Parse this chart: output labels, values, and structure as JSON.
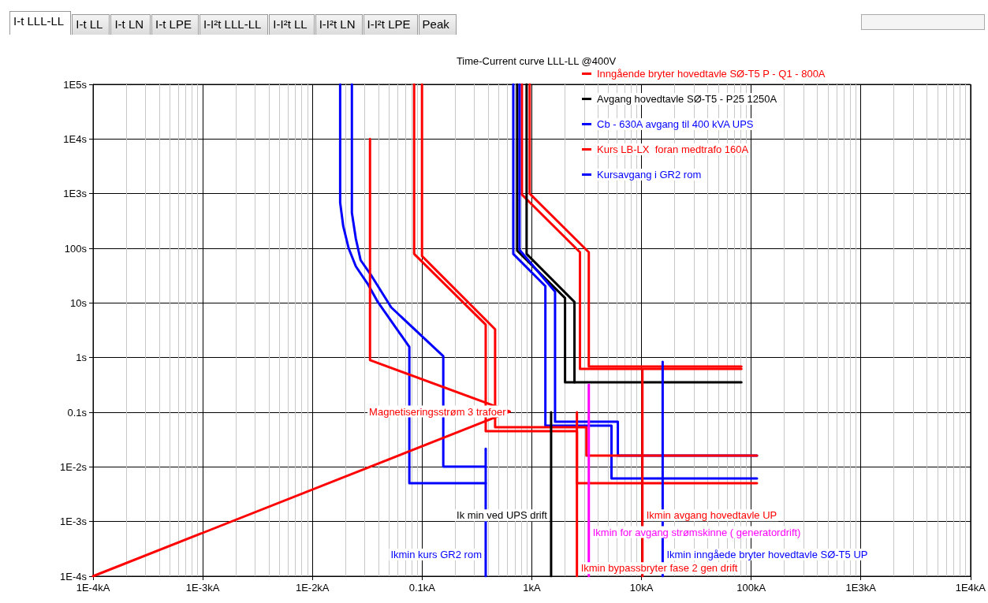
{
  "chart_data": {
    "type": "line",
    "title": "Time-Current curve LLL-LL @400V",
    "annotations": [
      "I-t LLL-LL",
      "I-t LL",
      "I-t LN",
      "I-t LPE",
      "I-I²t LLL-LL",
      "I-I²t LL",
      "I-I²t LN",
      "I-I²t LPE",
      "Peak",
      {
        "text": "Magnetiseringsstrøm 3 trafoer",
        "x": 0.63,
        "y": 0.103
      },
      {
        "text": "Ik min ved UPS drift",
        "x": 1.5,
        "y": 0.0013
      },
      {
        "text": "Ikmin kurs GR2 rom",
        "x": 0.38,
        "y": 0.00025
      },
      {
        "text": "Ikmin avgang hovedtavle UP",
        "x": 10.2,
        "y": 0.0013
      },
      {
        "text": "Ikmin for avgang strømskinne ( generatordrift)",
        "x": 3.31,
        "y": 0.00064
      },
      {
        "text": "Ikmin inngåede bryter hovedtavle SØ-T5 UP",
        "x": 15.6,
        "y": 0.00025
      },
      {
        "text": "Ikmin bypassbryter fase 2 gen drift",
        "x": 2.58,
        "y": 0.00014
      }
    ],
    "log": "xy",
    "grid": true,
    "legend": "top right",
    "marker": "none",
    "line_style": "solid",
    "xlim": [
      0.0001,
      10000
    ],
    "ylim": [
      0.0001,
      100000
    ],
    "xticks": [
      {
        "value": 0.0001,
        "label": "1E-4kA"
      },
      {
        "value": 0.001,
        "label": "1E-3kA"
      },
      {
        "value": 0.01,
        "label": "1E-2kA"
      },
      {
        "value": 0.1,
        "label": "0.1kA"
      },
      {
        "value": 1,
        "label": "1kA"
      },
      {
        "value": 10,
        "label": "10kA"
      },
      {
        "value": 100,
        "label": "100kA"
      },
      {
        "value": 1000,
        "label": "1E3kA"
      },
      {
        "value": 10000,
        "label": "1E4kA"
      }
    ],
    "yticks": [
      {
        "value": 0.0001,
        "label": "1E-4s"
      },
      {
        "value": 0.001,
        "label": "1E-3s"
      },
      {
        "value": 0.01,
        "label": "1E-2s"
      },
      {
        "value": 0.1,
        "label": "0.1s"
      },
      {
        "value": 1,
        "label": "1s"
      },
      {
        "value": 10,
        "label": "10s"
      },
      {
        "value": 100,
        "label": "100s"
      },
      {
        "value": 1000,
        "label": "1E3s"
      },
      {
        "value": 10000,
        "label": "1E4s"
      },
      {
        "value": 100000,
        "label": "1E5s"
      }
    ],
    "series": [
      {
        "name": "Inngående bryter hovedtavle SØ-T5 P - Q1 - 800A",
        "color": "#ff0000",
        "x": [
          0.813,
          0.813,
          2.75,
          2.75,
          81.5
        ],
        "values": [
          100000,
          960,
          84.7,
          0.621,
          0.621
        ]
      },
      {
        "color": "#ff0000",
        "x": [
          0.957,
          0.957,
          3.31,
          3.31,
          81.5
        ],
        "values": [
          100000,
          1000,
          84.7,
          0.686,
          0.686
        ]
      },
      {
        "name": "Avgang hovedtavle SØ-T5 - P25 1250A",
        "color": "#000000",
        "x": [
          0.736,
          0.736,
          2.01,
          2.01,
          81.5
        ],
        "values": [
          100000,
          90.5,
          12.3,
          0.353,
          0.353
        ]
      },
      {
        "color": "#000000",
        "x": [
          0.897,
          0.897,
          2.45,
          2.45
        ],
        "values": [
          100000,
          79,
          10.4,
          0.353
        ]
      },
      {
        "name": "Cb - 630A avgang til 400 kVA UPS",
        "color": "#0000ff",
        "x": [
          0.678,
          0.678,
          1.33,
          1.33,
          5.33,
          5.33,
          113
        ],
        "values": [
          100000,
          79,
          20.3,
          0.0569,
          0.0569,
          0.00614,
          0.00614
        ]
      },
      {
        "color": "#0000ff",
        "x": [
          0.773,
          0.773,
          1.63,
          1.63,
          6.09,
          6.09,
          113
        ],
        "values": [
          100000,
          93.5,
          16.1,
          0.0671,
          0.0671,
          0.0161,
          0.0161
        ]
      },
      {
        "name": "Kurs LB-LX  foran medtrafo 160A",
        "color": "#ff0000",
        "x": [
          0.0846,
          0.0846,
          0.38,
          0.38,
          2.58,
          2.58,
          113
        ],
        "values": [
          100000,
          79,
          4.0,
          0.045,
          0.045,
          0.00503,
          0.00503
        ]
      },
      {
        "color": "#ff0000",
        "x": [
          0.0998,
          0.0998,
          0.463,
          0.463,
          3.15,
          3.15,
          113
        ],
        "values": [
          100000,
          72,
          3.3,
          0.053,
          0.053,
          0.0161,
          0.0161
        ]
      },
      {
        "name": "Kursavgang i GR2 rom",
        "color": "#0000ff",
        "x": [
          0.0179,
          0.0179,
          0.0191,
          0.0214,
          0.0249,
          0.0319,
          0.0395,
          0.0765,
          0.0765,
          0.38
        ],
        "values": [
          100000,
          686,
          254,
          100,
          46.6,
          22.4,
          10.4,
          1.57,
          0.00503,
          0.00503
        ]
      },
      {
        "color": "#0000ff",
        "x": [
          0.0229,
          0.0229,
          0.0249,
          0.0275,
          0.0346,
          0.0523,
          0.156,
          0.156,
          0.38
        ],
        "values": [
          100000,
          446,
          149,
          60.8,
          31.3,
          8.28,
          1.06,
          0.0101,
          0.0101
        ]
      },
      {
        "color": "#ff0000",
        "x": [
          0.0001,
          0.63,
          0.0335,
          0.0335
        ],
        "values": [
          0.0001,
          0.103,
          0.9,
          10000
        ]
      },
      {
        "color": "#0000ff",
        "x": [
          0.38,
          0.38
        ],
        "values": [
          0.0001,
          0.0215
        ]
      },
      {
        "color": "#000000",
        "x": [
          1.5,
          1.5
        ],
        "values": [
          0.0001,
          0.1
        ]
      },
      {
        "color": "#ff0000",
        "x": [
          2.58,
          2.58
        ],
        "values": [
          0.0001,
          0.1
        ]
      },
      {
        "color": "#ff00ff",
        "x": [
          3.31,
          3.31
        ],
        "values": [
          0.0001,
          0.32
        ]
      },
      {
        "color": "#ff0000",
        "x": [
          10.2,
          10.2
        ],
        "values": [
          0.0001,
          0.58
        ]
      },
      {
        "color": "#0000ff",
        "x": [
          15.6,
          15.6
        ],
        "values": [
          0.0001,
          0.84
        ]
      }
    ]
  }
}
